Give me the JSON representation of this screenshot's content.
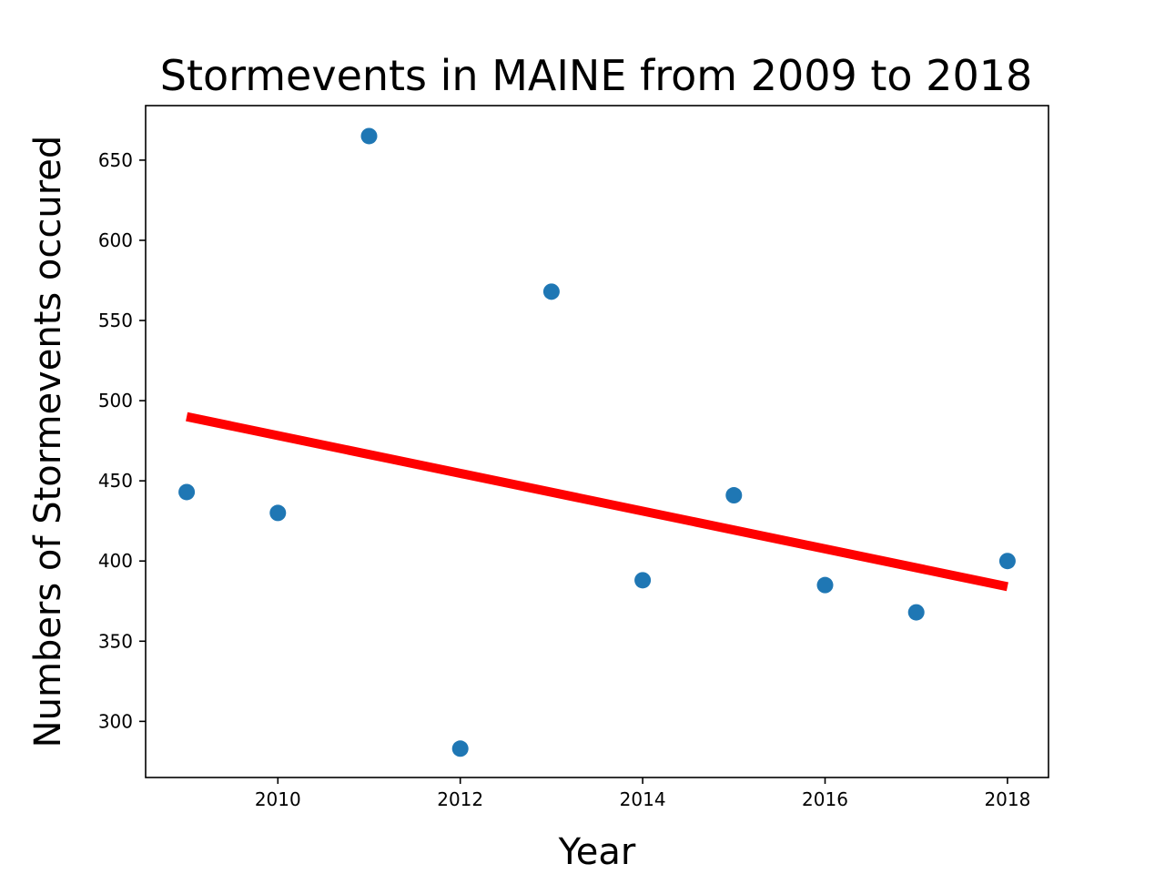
{
  "chart_data": {
    "type": "scatter",
    "title": "Stormevents in MAINE from 2009 to 2018",
    "xlabel": "Year",
    "ylabel": "Numbers of Stormevents occured",
    "xlim": [
      2008.55,
      2018.45
    ],
    "ylim": [
      265,
      684
    ],
    "x_ticks": [
      2010,
      2012,
      2014,
      2016,
      2018
    ],
    "y_ticks": [
      300,
      350,
      400,
      450,
      500,
      550,
      600,
      650
    ],
    "grid": false,
    "series": [
      {
        "kind": "scatter",
        "color": "#1f77b4",
        "points": [
          {
            "x": 2009,
            "y": 443
          },
          {
            "x": 2010,
            "y": 430
          },
          {
            "x": 2011,
            "y": 665
          },
          {
            "x": 2012,
            "y": 283
          },
          {
            "x": 2013,
            "y": 568
          },
          {
            "x": 2014,
            "y": 388
          },
          {
            "x": 2015,
            "y": 441
          },
          {
            "x": 2016,
            "y": 385
          },
          {
            "x": 2017,
            "y": 368
          },
          {
            "x": 2018,
            "y": 400
          }
        ]
      },
      {
        "kind": "trendline",
        "color": "#ff0000",
        "points": [
          {
            "x": 2009,
            "y": 490
          },
          {
            "x": 2018,
            "y": 384
          }
        ]
      }
    ]
  }
}
